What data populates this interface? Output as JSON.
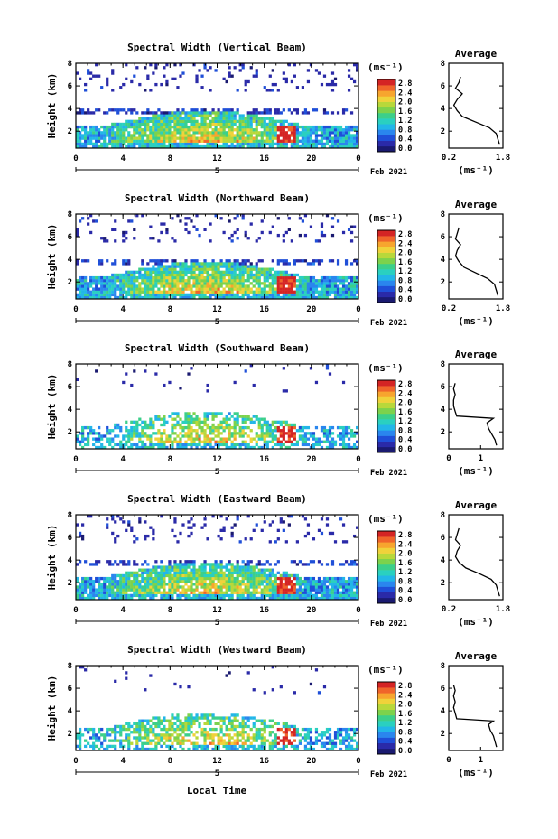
{
  "figure": {
    "bottom_xlabel": "Local Time",
    "colors": [
      "#1a1a70",
      "#2a2aa8",
      "#1f4fd8",
      "#2a86ee",
      "#22b6e8",
      "#2ad0c0",
      "#3ccf8a",
      "#7dd24c",
      "#b8d83a",
      "#f0d23a",
      "#f7a52e",
      "#f0652a",
      "#d42424"
    ]
  },
  "chart_data": [
    {
      "type": "heatmap",
      "title": "Spectral Width (Vertical Beam)",
      "ylabel": "Height (km)",
      "yticks": [
        "2",
        "4",
        "6",
        "8"
      ],
      "ylim": [
        0.5,
        8
      ],
      "xticks": [
        "0",
        "4",
        "8",
        "12",
        "16",
        "20",
        "0"
      ],
      "xlim": [
        0,
        24
      ],
      "date_tick": "5",
      "date_label": "Feb 2021",
      "colorbar": {
        "unit": "(ms⁻¹)",
        "ticks": [
          "2.8",
          "2.4",
          "2.0",
          "1.6",
          "1.2",
          "0.8",
          "0.4",
          "0.0"
        ],
        "range": [
          0,
          3
        ]
      },
      "profile": {
        "title": "Average",
        "xlabel": "(ms⁻¹)",
        "xticks": [
          "0.2",
          "1.8"
        ],
        "xlim": [
          0.2,
          1.8
        ],
        "yticks": [
          "2",
          "4",
          "6",
          "8"
        ],
        "ylim": [
          0.5,
          8
        ],
        "heights": [
          0.8,
          1.3,
          1.8,
          2.3,
          2.8,
          3.3,
          3.8,
          4.3,
          4.8,
          5.3,
          5.8,
          6.3,
          6.8
        ],
        "values": [
          1.7,
          1.65,
          1.6,
          1.4,
          1.0,
          0.6,
          0.45,
          0.35,
          0.45,
          0.6,
          0.4,
          0.5,
          0.55
        ]
      }
    },
    {
      "type": "heatmap",
      "title": "Spectral Width (Northward Beam)",
      "ylabel": "Height (km)",
      "yticks": [
        "2",
        "4",
        "6",
        "8"
      ],
      "ylim": [
        0.5,
        8
      ],
      "xticks": [
        "0",
        "4",
        "8",
        "12",
        "16",
        "20",
        "0"
      ],
      "xlim": [
        0,
        24
      ],
      "date_tick": "5",
      "date_label": "Feb 2021",
      "colorbar": {
        "unit": "(ms⁻¹)",
        "ticks": [
          "2.8",
          "2.4",
          "2.0",
          "1.6",
          "1.2",
          "0.8",
          "0.4",
          "0.0"
        ],
        "range": [
          0,
          3
        ]
      },
      "profile": {
        "title": "Average",
        "xlabel": "(ms⁻¹)",
        "xticks": [
          "0.2",
          "1.8"
        ],
        "xlim": [
          0.2,
          1.8
        ],
        "yticks": [
          "2",
          "4",
          "6",
          "8"
        ],
        "ylim": [
          0.5,
          8
        ],
        "heights": [
          0.8,
          1.3,
          1.8,
          2.3,
          2.8,
          3.3,
          3.8,
          4.3,
          4.8,
          5.3,
          5.8,
          6.3,
          6.8
        ],
        "values": [
          1.65,
          1.6,
          1.55,
          1.35,
          1.0,
          0.65,
          0.5,
          0.4,
          0.45,
          0.55,
          0.4,
          0.45,
          0.5
        ]
      }
    },
    {
      "type": "heatmap",
      "title": "Spectral Width (Southward Beam)",
      "ylabel": "Height (km)",
      "yticks": [
        "2",
        "4",
        "6",
        "8"
      ],
      "ylim": [
        0.5,
        8
      ],
      "xticks": [
        "0",
        "4",
        "8",
        "12",
        "16",
        "20",
        "0"
      ],
      "xlim": [
        0,
        24
      ],
      "date_tick": "5",
      "date_label": "Feb 2021",
      "colorbar": {
        "unit": "(ms⁻¹)",
        "ticks": [
          "2.8",
          "2.4",
          "2.0",
          "1.6",
          "1.2",
          "0.8",
          "0.4",
          "0.0"
        ],
        "range": [
          0,
          3
        ]
      },
      "profile": {
        "title": "Average",
        "xlabel": "(ms⁻¹)",
        "xticks": [
          "0",
          "1"
        ],
        "xlim": [
          0,
          1.7
        ],
        "yticks": [
          "2",
          "4",
          "6",
          "8"
        ],
        "ylim": [
          0.5,
          8
        ],
        "heights": [
          0.8,
          1.3,
          1.8,
          2.3,
          2.8,
          3.2,
          3.4,
          3.8,
          4.3,
          4.8,
          5.3,
          5.8,
          6.3
        ],
        "values": [
          1.5,
          1.45,
          1.35,
          1.25,
          1.2,
          1.4,
          0.25,
          0.2,
          0.15,
          0.15,
          0.2,
          0.15,
          0.2
        ]
      }
    },
    {
      "type": "heatmap",
      "title": "Spectral Width (Eastward Beam)",
      "ylabel": "Height (km)",
      "yticks": [
        "2",
        "4",
        "6",
        "8"
      ],
      "ylim": [
        0.5,
        8
      ],
      "xticks": [
        "0",
        "4",
        "8",
        "12",
        "16",
        "20",
        "0"
      ],
      "xlim": [
        0,
        24
      ],
      "date_tick": "5",
      "date_label": "Feb 2021",
      "colorbar": {
        "unit": "(ms⁻¹)",
        "ticks": [
          "2.8",
          "2.4",
          "2.0",
          "1.6",
          "1.2",
          "0.8",
          "0.4",
          "0.0"
        ],
        "range": [
          0,
          3
        ]
      },
      "profile": {
        "title": "Average",
        "xlabel": "(ms⁻¹)",
        "xticks": [
          "0.2",
          "1.8"
        ],
        "xlim": [
          0.2,
          1.8
        ],
        "yticks": [
          "2",
          "4",
          "6",
          "8"
        ],
        "ylim": [
          0.5,
          8
        ],
        "heights": [
          0.8,
          1.3,
          1.8,
          2.3,
          2.8,
          3.3,
          3.8,
          4.3,
          4.8,
          5.3,
          5.8,
          6.3,
          6.8
        ],
        "values": [
          1.7,
          1.65,
          1.6,
          1.45,
          1.1,
          0.7,
          0.5,
          0.4,
          0.45,
          0.55,
          0.4,
          0.45,
          0.5
        ]
      }
    },
    {
      "type": "heatmap",
      "title": "Spectral Width (Westward Beam)",
      "ylabel": "Height (km)",
      "yticks": [
        "2",
        "4",
        "6",
        "8"
      ],
      "ylim": [
        0.5,
        8
      ],
      "xticks": [
        "0",
        "4",
        "8",
        "12",
        "16",
        "20",
        "0"
      ],
      "xlim": [
        0,
        24
      ],
      "date_tick": "5",
      "date_label": "Feb 2021",
      "colorbar": {
        "unit": "(ms⁻¹)",
        "ticks": [
          "2.8",
          "2.4",
          "2.0",
          "1.6",
          "1.2",
          "0.8",
          "0.4",
          "0.0"
        ],
        "range": [
          0,
          3
        ]
      },
      "profile": {
        "title": "Average",
        "xlabel": "(ms⁻¹)",
        "xticks": [
          "0",
          "1"
        ],
        "xlim": [
          0,
          1.7
        ],
        "yticks": [
          "2",
          "4",
          "6",
          "8"
        ],
        "ylim": [
          0.5,
          8
        ],
        "heights": [
          0.8,
          1.3,
          1.8,
          2.3,
          2.8,
          3.1,
          3.3,
          3.8,
          4.3,
          4.8,
          5.3,
          5.8,
          6.3
        ],
        "values": [
          1.5,
          1.45,
          1.4,
          1.3,
          1.25,
          1.4,
          0.25,
          0.2,
          0.15,
          0.2,
          0.15,
          0.2,
          0.15
        ]
      }
    }
  ]
}
